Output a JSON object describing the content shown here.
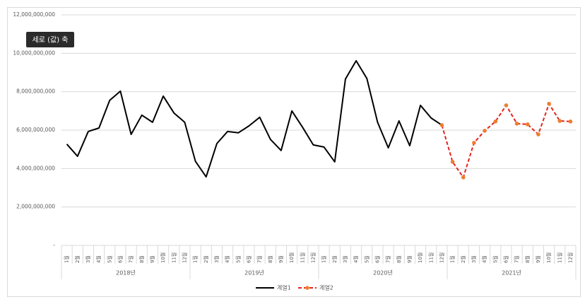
{
  "chart_data": {
    "type": "line",
    "tooltip": "세로 (값) 축",
    "categories": [
      "1월",
      "2월",
      "3월",
      "4월",
      "5월",
      "6월",
      "7월",
      "8월",
      "9월",
      "10월",
      "11월",
      "12월",
      "1월",
      "2월",
      "3월",
      "4월",
      "5월",
      "6월",
      "7월",
      "8월",
      "9월",
      "10월",
      "11월",
      "12월",
      "1월",
      "2월",
      "3월",
      "4월",
      "5월",
      "6월",
      "7월",
      "8월",
      "9월",
      "10월",
      "11월",
      "12월",
      "1월",
      "2월",
      "3월",
      "4월",
      "5월",
      "6월",
      "7월",
      "8월",
      "9월",
      "10월",
      "11월",
      "12월"
    ],
    "category_groups": [
      "2018년",
      "2019년",
      "2020년",
      "2021년"
    ],
    "series": [
      {
        "name": "계열1",
        "color": "#000000",
        "dashed": false,
        "values": [
          5270000000,
          4640000000,
          5930000000,
          6110000000,
          7550000000,
          8030000000,
          5780000000,
          6780000000,
          6410000000,
          7770000000,
          6890000000,
          6410000000,
          4380000000,
          3570000000,
          5300000000,
          5930000000,
          5860000000,
          6220000000,
          6670000000,
          5520000000,
          4940000000,
          7000000000,
          6150000000,
          5230000000,
          5120000000,
          4350000000,
          8660000000,
          9610000000,
          8690000000,
          6410000000,
          5080000000,
          6480000000,
          5190000000,
          7290000000,
          6630000000,
          6260000000,
          null,
          null,
          null,
          null,
          null,
          null,
          null,
          null,
          null,
          null,
          null,
          null
        ]
      },
      {
        "name": "계열2",
        "color": "#e3241b",
        "marker_color": "#ed7d31",
        "dashed": true,
        "values": [
          null,
          null,
          null,
          null,
          null,
          null,
          null,
          null,
          null,
          null,
          null,
          null,
          null,
          null,
          null,
          null,
          null,
          null,
          null,
          null,
          null,
          null,
          null,
          null,
          null,
          null,
          null,
          null,
          null,
          null,
          null,
          null,
          null,
          null,
          null,
          6260000000,
          4350000000,
          3540000000,
          5340000000,
          5970000000,
          6450000000,
          7290000000,
          6340000000,
          6300000000,
          5780000000,
          7370000000,
          6480000000,
          6450000000
        ]
      }
    ],
    "ylim": [
      0,
      12000000000
    ],
    "yticks": [
      {
        "value": 0,
        "label": "-"
      },
      {
        "value": 2000000000,
        "label": "2,000,000,000"
      },
      {
        "value": 4000000000,
        "label": "4,000,000,000"
      },
      {
        "value": 6000000000,
        "label": "6,000,000,000"
      },
      {
        "value": 8000000000,
        "label": "8,000,000,000"
      },
      {
        "value": 10000000000,
        "label": "10,000,000,000"
      },
      {
        "value": 12000000000,
        "label": "12,000,000,000"
      }
    ],
    "grid": true
  }
}
